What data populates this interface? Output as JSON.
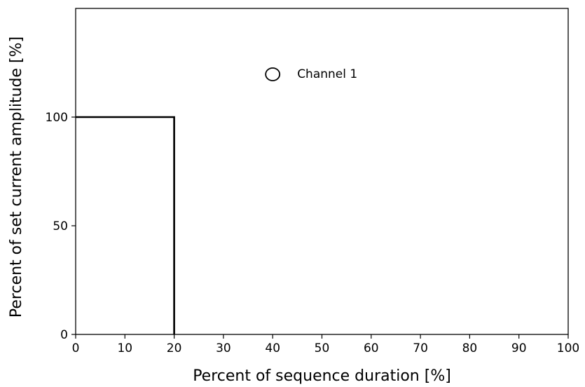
{
  "chart_data": {
    "type": "line",
    "xlabel": "Percent of sequence duration [%]",
    "ylabel": "Percent of set current amplitude [%]",
    "xlim": [
      0,
      100
    ],
    "ylim": [
      0,
      150
    ],
    "xticks": [
      0,
      10,
      20,
      30,
      40,
      50,
      60,
      70,
      80,
      90,
      100
    ],
    "yticks": [
      0,
      50,
      100
    ],
    "grid": false,
    "series": [
      {
        "name": "Channel 1",
        "x": [
          0,
          20,
          20
        ],
        "y": [
          100,
          100,
          0
        ],
        "color": "#000000"
      }
    ],
    "annotations": [
      {
        "text": "Channel 1",
        "marker": "open-circle",
        "x": 40,
        "y": 120
      }
    ]
  }
}
